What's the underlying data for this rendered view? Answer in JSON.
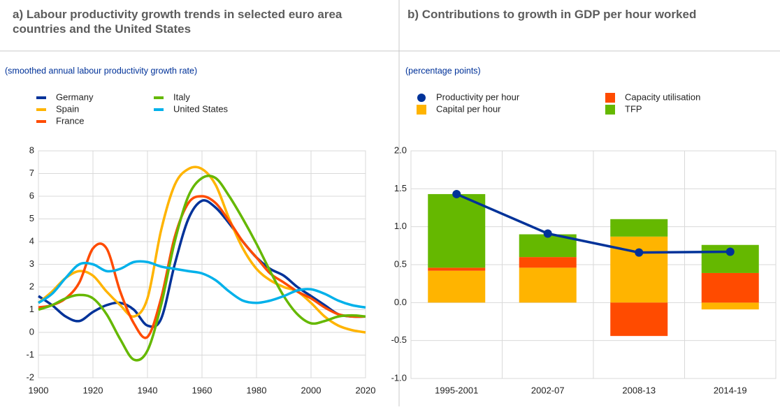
{
  "chart_data": [
    {
      "type": "line",
      "title": "a) Labour productivity growth trends in selected euro area countries and the United States",
      "subtitle": "(smoothed annual labour productivity growth rate)",
      "x": [
        1900,
        1905,
        1910,
        1915,
        1920,
        1925,
        1930,
        1935,
        1940,
        1945,
        1950,
        1955,
        1960,
        1965,
        1970,
        1975,
        1980,
        1985,
        1990,
        1995,
        2000,
        2005,
        2010,
        2015,
        2020
      ],
      "series": [
        {
          "name": "Germany",
          "color": "#003299",
          "values": [
            1.6,
            1.2,
            0.7,
            0.5,
            0.9,
            1.2,
            1.3,
            1.0,
            0.3,
            0.6,
            3.0,
            5.0,
            5.8,
            5.5,
            4.8,
            4.0,
            3.3,
            2.8,
            2.5,
            2.0,
            1.6,
            1.2,
            0.8,
            0.7,
            0.7
          ]
        },
        {
          "name": "Spain",
          "color": "#ffb400",
          "values": [
            1.3,
            1.8,
            2.4,
            2.7,
            2.5,
            1.8,
            1.2,
            0.7,
            1.5,
            4.5,
            6.5,
            7.2,
            7.2,
            6.5,
            5.0,
            3.7,
            2.8,
            2.3,
            2.0,
            1.8,
            1.3,
            0.7,
            0.3,
            0.1,
            0.0
          ]
        },
        {
          "name": "France",
          "color": "#ff4b00",
          "values": [
            1.1,
            1.2,
            1.5,
            2.2,
            3.7,
            3.7,
            1.8,
            0.4,
            -0.2,
            1.5,
            4.2,
            5.7,
            6.0,
            5.7,
            4.9,
            4.0,
            3.3,
            2.6,
            2.2,
            1.8,
            1.5,
            1.1,
            0.8,
            0.7,
            0.7
          ]
        },
        {
          "name": "Italy",
          "color": "#65b800",
          "values": [
            1.0,
            1.2,
            1.5,
            1.65,
            1.5,
            0.8,
            -0.3,
            -1.2,
            -0.8,
            1.2,
            4.0,
            6.0,
            6.8,
            6.8,
            6.0,
            5.0,
            3.9,
            2.7,
            1.6,
            0.8,
            0.4,
            0.5,
            0.7,
            0.75,
            0.7
          ]
        },
        {
          "name": "United States",
          "color": "#00b1ea",
          "values": [
            1.3,
            1.7,
            2.4,
            3.0,
            3.0,
            2.7,
            2.8,
            3.1,
            3.1,
            2.9,
            2.8,
            2.7,
            2.6,
            2.3,
            1.8,
            1.4,
            1.3,
            1.4,
            1.6,
            1.85,
            1.9,
            1.7,
            1.4,
            1.2,
            1.1
          ]
        }
      ],
      "xlim": [
        1900,
        2020
      ],
      "xticks": [
        1900,
        1920,
        1940,
        1960,
        1980,
        2000,
        2020
      ],
      "ylim": [
        -2,
        8
      ],
      "yticks": [
        -2,
        -1,
        0,
        1,
        2,
        3,
        4,
        5,
        6,
        7,
        8
      ],
      "grid": true
    },
    {
      "type": "bar",
      "title": "b) Contributions to growth in GDP per hour worked",
      "subtitle": "(percentage points)",
      "categories": [
        "1995-2001",
        "2002-07",
        "2008-13",
        "2014-19"
      ],
      "series": [
        {
          "name": "Productivity per hour",
          "color": "#003299",
          "type": "line",
          "values": [
            1.43,
            0.91,
            0.66,
            0.67
          ]
        },
        {
          "name": "Capital per hour",
          "color": "#ffb400",
          "values": [
            0.42,
            0.46,
            0.87,
            -0.09
          ]
        },
        {
          "name": "Capacity utilisation",
          "color": "#ff4b00",
          "values": [
            0.04,
            0.14,
            -0.44,
            0.39
          ]
        },
        {
          "name": "TFP",
          "color": "#65b800",
          "values": [
            0.97,
            0.3,
            0.23,
            0.37
          ]
        }
      ],
      "stacked": true,
      "ylim": [
        -1,
        2
      ],
      "yticks": [
        {
          "value": -1,
          "label": "-1.0"
        },
        -0.5,
        {
          "value": 0,
          "label": "0.0"
        },
        0.5,
        {
          "value": 1,
          "label": "1.0"
        },
        1.5,
        {
          "value": 2,
          "label": "2.0"
        }
      ],
      "grid": true
    }
  ]
}
